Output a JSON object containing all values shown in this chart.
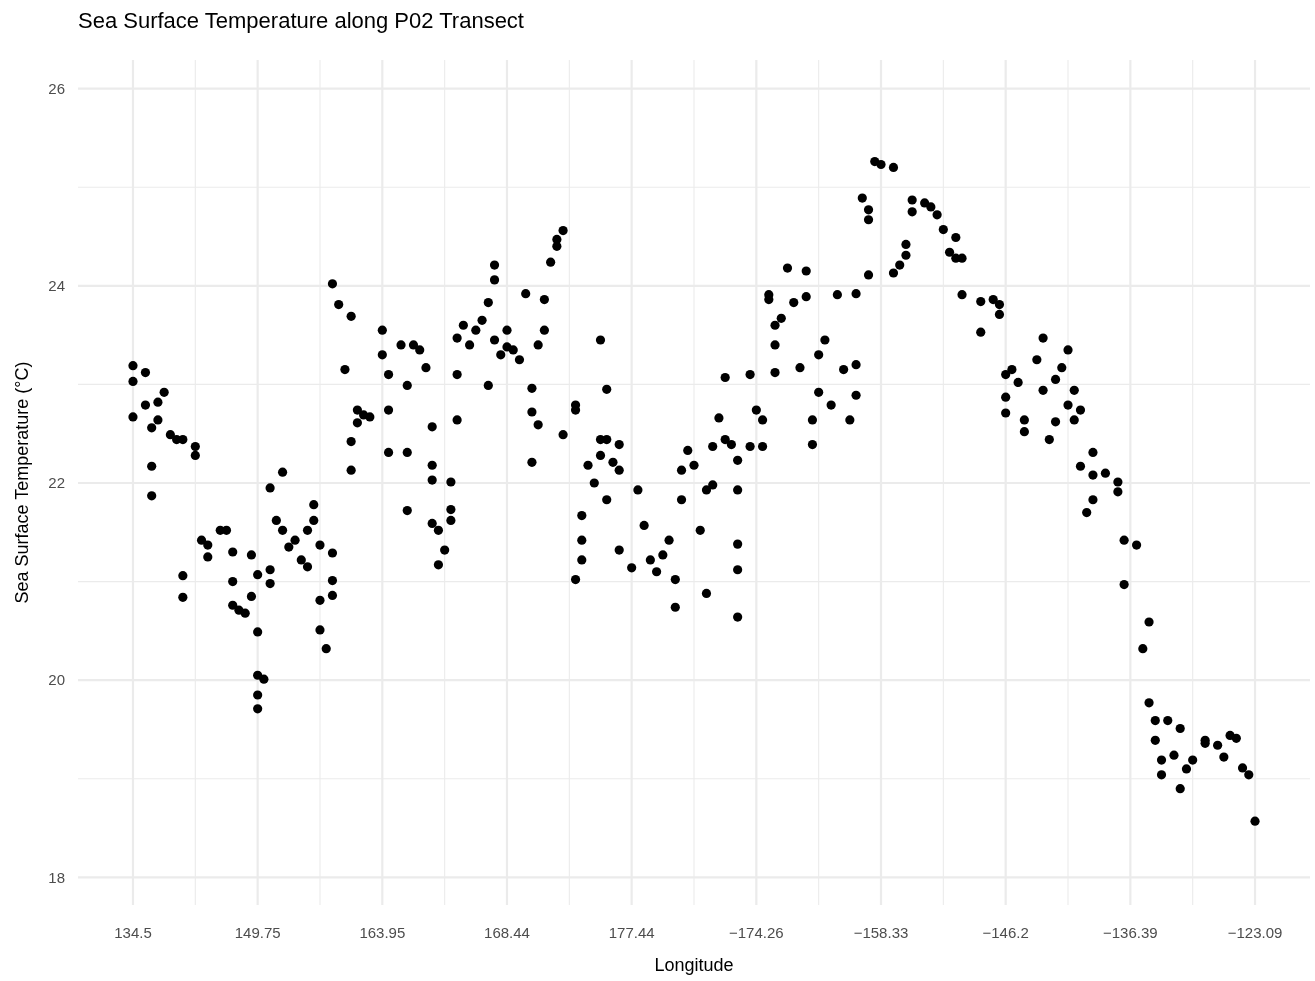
{
  "chart_data": {
    "type": "scatter",
    "title": "Sea Surface Temperature along P02 Transect",
    "xlabel": "Longitude",
    "ylabel": "Sea Surface Temperature (°C)",
    "categories": [
      "134.5",
      null,
      null,
      null,
      null,
      null,
      null,
      null,
      null,
      null,
      null,
      null,
      null,
      null,
      null,
      null,
      null,
      null,
      null,
      null,
      "149.75",
      null,
      null,
      null,
      null,
      null,
      null,
      null,
      null,
      null,
      null,
      null,
      null,
      null,
      null,
      null,
      null,
      null,
      null,
      null,
      "163.95",
      null,
      null,
      null,
      null,
      null,
      null,
      null,
      null,
      null,
      null,
      null,
      null,
      null,
      null,
      null,
      null,
      null,
      null,
      null,
      "168.44",
      null,
      null,
      null,
      null,
      null,
      null,
      null,
      null,
      null,
      null,
      null,
      null,
      null,
      null,
      null,
      null,
      null,
      null,
      null,
      "177.44",
      null,
      null,
      null,
      null,
      null,
      null,
      null,
      null,
      null,
      null,
      null,
      null,
      null,
      null,
      null,
      null,
      null,
      null,
      null,
      "−174.26",
      null,
      null,
      null,
      null,
      null,
      null,
      null,
      null,
      null,
      null,
      null,
      null,
      null,
      null,
      null,
      null,
      null,
      null,
      null,
      "−158.33",
      null,
      null,
      null,
      null,
      null,
      null,
      null,
      null,
      null,
      null,
      null,
      null,
      null,
      null,
      null,
      null,
      null,
      null,
      null,
      "−146.2",
      null,
      null,
      null,
      null,
      null,
      null,
      null,
      null,
      null,
      null,
      null,
      null,
      null,
      null,
      null,
      null,
      null,
      null,
      null,
      "−136.39",
      null,
      null,
      null,
      null,
      null,
      null,
      null,
      null,
      null,
      null,
      null,
      null,
      null,
      null,
      null,
      null,
      null,
      null,
      null,
      "−123.09"
    ],
    "ylim": [
      17.72,
      26.29
    ],
    "yticks": [
      18,
      {
        "value": 19,
        "label": null
      },
      20,
      {
        "value": 21,
        "label": null
      },
      22,
      {
        "value": 23,
        "label": null
      },
      24,
      {
        "value": 25,
        "label": null
      },
      26
    ],
    "grid": true,
    "marker": "circle",
    "series": [
      {
        "color": "#000000",
        "values": [
          23.19,
          null,
          23.12,
          22.56,
          22.82,
          22.92,
          22.49,
          22.44,
          22.44,
          null,
          22.37,
          21.42,
          21.25,
          null,
          21.52,
          21.52,
          21.3,
          20.71,
          20.68,
          20.85,
          21.07,
          20.01,
          21.12,
          21.62,
          22.11,
          21.35,
          21.42,
          21.22,
          21.15,
          21.78,
          21.37,
          20.32,
          21.01,
          23.81,
          23.15,
          23.69,
          22.74,
          22.69,
          22.67,
          null,
          23.55,
          23.1,
          null,
          23.4,
          22.99,
          23.4,
          23.35,
          23.17,
          22.57,
          21.52,
          21.32,
          22.01,
          22.64,
          23.6,
          23.4,
          23.55,
          23.65,
          23.83,
          24.06,
          23.3,
          23.55,
          23.35,
          23.25,
          23.92,
          22.72,
          22.59,
          23.55,
          24.24,
          24.4,
          24.56,
          null,
          22.74,
          21.42,
          22.18,
          22.0,
          22.28,
          21.83,
          22.21,
          22.39,
          null,
          21.14,
          21.93,
          21.57,
          21.22,
          21.1,
          21.27,
          21.42,
          21.02,
          21.83,
          22.33,
          22.18,
          21.52,
          20.88,
          21.98,
          22.66,
          23.07,
          22.39,
          22.23,
          null,
          22.37,
          22.74,
          22.64,
          23.86,
          23.6,
          23.67,
          24.18,
          23.83,
          23.17,
          24.15,
          22.64,
          22.92,
          23.45,
          22.79,
          23.91,
          23.15,
          22.64,
          22.89,
          24.89,
          24.77,
          25.26,
          25.23,
          null,
          25.2,
          24.21,
          24.31,
          24.87,
          null,
          24.84,
          24.8,
          24.72,
          24.57,
          24.34,
          24.49,
          24.28,
          null,
          null,
          23.84,
          null,
          23.86,
          23.81,
          23.1,
          23.15,
          23.02,
          22.64,
          null,
          23.25,
          23.47,
          22.44,
          22.62,
          23.17,
          22.79,
          22.64,
          22.74,
          21.7,
          22.31,
          null,
          22.1,
          null,
          22.01,
          21.42,
          null,
          21.37,
          20.32,
          20.59,
          19.59,
          19.04,
          19.59,
          19.24,
          18.9,
          19.1,
          19.19,
          null,
          19.39,
          null,
          19.34,
          19.22,
          19.44,
          19.41,
          19.11,
          19.04,
          18.57
        ]
      },
      {
        "color": "#000000",
        "values": [
          23.03,
          null,
          22.79,
          21.87,
          22.64,
          null,
          null,
          null,
          21.06,
          null,
          22.28,
          null,
          21.37,
          null,
          null,
          null,
          21.0,
          null,
          null,
          21.27,
          20.49,
          null,
          20.98,
          null,
          21.52,
          null,
          null,
          null,
          21.52,
          21.62,
          20.51,
          null,
          20.86,
          null,
          null,
          22.13,
          22.61,
          null,
          null,
          null,
          23.3,
          22.31,
          null,
          null,
          22.31,
          null,
          null,
          null,
          22.18,
          21.17,
          null,
          21.73,
          23.1,
          null,
          null,
          null,
          null,
          22.99,
          24.21,
          null,
          23.38,
          null,
          null,
          null,
          22.21,
          23.4,
          23.86,
          null,
          24.47,
          22.49,
          null,
          22.79,
          21.22,
          null,
          null,
          22.44,
          22.95,
          null,
          22.13,
          null,
          null,
          null,
          null,
          null,
          null,
          null,
          null,
          20.74,
          22.13,
          null,
          null,
          null,
          21.93,
          22.37,
          null,
          22.44,
          null,
          21.38,
          null,
          23.1,
          null,
          22.37,
          23.91,
          23.4,
          null,
          null,
          null,
          null,
          23.89,
          22.39,
          23.3,
          null,
          null,
          null,
          null,
          null,
          23.2,
          null,
          24.67,
          null,
          null,
          null,
          24.13,
          null,
          24.42,
          24.75,
          null,
          null,
          null,
          null,
          null,
          null,
          24.28,
          23.91,
          null,
          null,
          23.53,
          null,
          null,
          23.71,
          22.71,
          null,
          null,
          22.52,
          null,
          null,
          22.94,
          null,
          23.05,
          null,
          23.35,
          22.94,
          22.17,
          null,
          21.83,
          null,
          null,
          null,
          21.91,
          20.97,
          null,
          null,
          null,
          19.77,
          19.39,
          19.19,
          null,
          null,
          19.51,
          null,
          null,
          null,
          19.36,
          null,
          null,
          null,
          null,
          null,
          null,
          null,
          null
        ]
      },
      {
        "color": "#000000",
        "values": [
          22.67,
          null,
          null,
          22.17,
          null,
          null,
          null,
          null,
          20.84,
          null,
          null,
          null,
          null,
          null,
          null,
          null,
          20.76,
          null,
          null,
          null,
          20.05,
          null,
          21.95,
          null,
          null,
          null,
          null,
          null,
          null,
          null,
          20.81,
          null,
          21.29,
          null,
          null,
          22.42,
          null,
          null,
          null,
          null,
          null,
          22.74,
          null,
          null,
          21.72,
          null,
          null,
          null,
          22.03,
          null,
          null,
          21.62,
          23.47,
          null,
          null,
          null,
          null,
          null,
          23.45,
          null,
          null,
          null,
          null,
          null,
          22.96,
          null,
          null,
          null,
          null,
          null,
          null,
          21.02,
          21.67,
          null,
          null,
          23.45,
          22.44,
          null,
          21.32,
          null,
          null,
          null,
          null,
          null,
          null,
          null,
          null,
          null,
          null,
          null,
          null,
          null,
          null,
          null,
          null,
          null,
          null,
          21.12,
          null,
          null,
          null,
          null,
          null,
          23.12,
          null,
          null,
          null,
          null,
          null,
          null,
          null,
          null,
          null,
          null,
          null,
          null,
          23.92,
          null,
          24.11,
          null,
          null,
          null,
          null,
          null,
          null,
          null,
          null,
          null,
          null,
          null,
          null,
          null,
          null,
          null,
          null,
          null,
          null,
          null,
          null,
          null,
          22.87,
          null,
          null,
          null,
          null,
          null,
          null,
          null,
          null,
          null,
          null,
          null,
          null,
          null,
          22.08,
          null,
          null,
          null,
          null,
          null,
          null,
          null,
          null,
          null,
          null,
          null,
          null,
          null,
          null,
          null,
          null,
          null,
          null,
          null,
          null,
          null,
          null,
          null,
          null,
          null,
          null
        ]
      },
      {
        "color": "#000000",
        "values": [
          null,
          null,
          null,
          null,
          null,
          null,
          null,
          null,
          null,
          null,
          null,
          null,
          null,
          null,
          null,
          null,
          null,
          null,
          null,
          null,
          19.85,
          null,
          null,
          null,
          null,
          null,
          null,
          null,
          null,
          null,
          null,
          null,
          24.02,
          null,
          null,
          null,
          null,
          null,
          null,
          null,
          null,
          null,
          null,
          null,
          null,
          null,
          null,
          null,
          21.59,
          null,
          null,
          null,
          null,
          null,
          null,
          null,
          null,
          null,
          null,
          null,
          null,
          null,
          null,
          null,
          null,
          null,
          null,
          null,
          null,
          null,
          null,
          null,
          null,
          null,
          null,
          null,
          null,
          null,
          null,
          null,
          null,
          null,
          null,
          null,
          null,
          null,
          null,
          null,
          null,
          null,
          null,
          null,
          null,
          null,
          null,
          null,
          null,
          20.64,
          null,
          null,
          null,
          null,
          null,
          null,
          null,
          null,
          null,
          null,
          null,
          null,
          null,
          null,
          null,
          null,
          null,
          null,
          null,
          null,
          null,
          null,
          null,
          null,
          null,
          null,
          null,
          null,
          null,
          null,
          null,
          null,
          null,
          null,
          null,
          null,
          null,
          null,
          null,
          null,
          null,
          null,
          null,
          null,
          null,
          null,
          null,
          null,
          null,
          null,
          null,
          null,
          null,
          null,
          null,
          null,
          null,
          null,
          null,
          null,
          null,
          null,
          null,
          null,
          null,
          null,
          null,
          null,
          null,
          null,
          null,
          null,
          null,
          null,
          null,
          null,
          null,
          null,
          null,
          null,
          null,
          null,
          null
        ]
      },
      {
        "color": "#000000",
        "values": [
          null,
          null,
          null,
          null,
          null,
          null,
          null,
          null,
          null,
          null,
          null,
          null,
          null,
          null,
          null,
          null,
          null,
          null,
          null,
          null,
          19.71,
          null,
          null,
          null,
          null,
          null,
          null,
          null,
          null,
          null,
          null,
          null,
          null,
          null,
          null,
          null,
          null,
          null,
          null,
          null,
          null,
          null,
          null,
          null,
          null,
          null,
          null,
          null,
          null,
          null,
          null,
          null,
          null,
          null,
          null,
          null,
          null,
          null,
          null,
          null,
          null,
          null,
          null,
          null,
          null,
          null,
          null,
          null,
          null,
          null,
          null,
          null,
          null,
          null,
          null,
          null,
          null,
          null,
          null,
          null,
          null,
          null,
          null,
          null,
          null,
          null,
          null,
          null,
          null,
          null,
          null,
          null,
          null,
          null,
          null,
          null,
          null,
          21.93,
          null,
          null,
          null,
          null,
          null,
          null,
          null,
          null,
          null,
          null,
          null,
          null,
          null,
          null,
          null,
          null,
          null,
          null,
          null,
          null,
          null,
          null,
          null,
          null,
          null,
          null,
          null,
          null,
          null,
          null,
          null,
          null,
          null,
          null,
          null,
          null,
          null,
          null,
          null,
          null,
          null,
          null,
          null,
          null,
          null,
          null,
          null,
          null,
          null,
          null,
          null,
          null,
          null,
          null,
          null,
          null,
          null,
          null,
          null,
          null,
          null,
          null,
          null,
          null,
          null,
          null,
          null,
          null,
          null,
          null,
          null,
          null,
          null,
          null,
          null,
          null,
          null,
          null,
          null,
          null,
          null,
          null,
          null
        ]
      }
    ]
  }
}
